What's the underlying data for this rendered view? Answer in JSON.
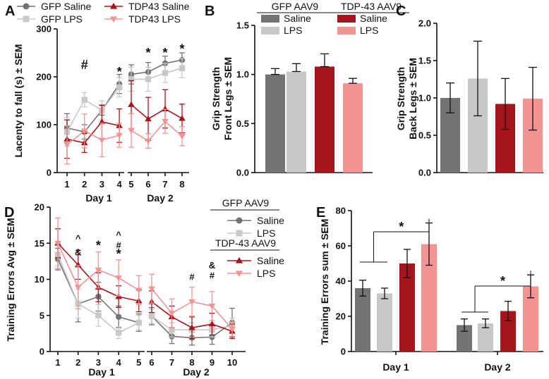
{
  "colors": {
    "gfp_saline": "#737373",
    "gfp_lps": "#c8c8c8",
    "tdp_saline": "#a7151c",
    "tdp_lps": "#f39393"
  },
  "chart_data": [
    {
      "panel": "A",
      "type": "line",
      "ylabel": "Lacenty to fall (s) ± SEM",
      "ylim": [
        0,
        300
      ],
      "yticks": [
        0,
        100,
        200,
        300
      ],
      "x": [
        1,
        2,
        3,
        4,
        5,
        6,
        7,
        8
      ],
      "day_labels": [
        "Day 1",
        "Day 2"
      ],
      "legend": [
        "GFP Saline",
        "GFP LPS",
        "TDP43 Saline",
        "TDP43 LPS"
      ],
      "series": [
        {
          "name": "GFP Saline",
          "values": [
            93,
            85,
            130,
            185,
            205,
            210,
            228,
            235
          ],
          "err": [
            30,
            15,
            10,
            20,
            20,
            20,
            15,
            15
          ]
        },
        {
          "name": "GFP LPS",
          "values": [
            85,
            152,
            130,
            178,
            195,
            195,
            208,
            218
          ],
          "err": [
            30,
            15,
            20,
            20,
            25,
            25,
            20,
            20
          ]
        },
        {
          "name": "TDP43 Saline",
          "values": [
            70,
            62,
            106,
            98,
            142,
            112,
            133,
            113
          ],
          "err": [
            40,
            20,
            35,
            35,
            50,
            45,
            40,
            30
          ]
        },
        {
          "name": "TDP43 LPS",
          "values": [
            58,
            87,
            68,
            78,
            88,
            66,
            107,
            76
          ],
          "err": [
            40,
            35,
            35,
            25,
            35,
            15,
            25,
            20
          ]
        }
      ],
      "annotations": [
        {
          "x": 2,
          "y": 225,
          "text": "#"
        },
        {
          "x": 4,
          "y": 210,
          "text": "*"
        },
        {
          "x": 6,
          "y": 250,
          "text": "*"
        },
        {
          "x": 7,
          "y": 250,
          "text": "*"
        },
        {
          "x": 8,
          "y": 258,
          "text": "*"
        }
      ]
    },
    {
      "panel": "B",
      "type": "bar",
      "ylabel": "Grip Strength Front Legs ± SEM",
      "ylim": [
        0,
        1.5
      ],
      "yticks": [
        "0.0",
        "0.5",
        "1.0",
        "1.5"
      ],
      "categories": [
        "GFP Saline",
        "GFP LPS",
        "TDP-43 Saline",
        "TDP-43 LPS"
      ],
      "values": [
        1.0,
        1.03,
        1.08,
        0.91
      ],
      "err": [
        0.06,
        0.08,
        0.13,
        0.05
      ],
      "legend_groups": [
        {
          "title": "GFP AAV9",
          "items": [
            "Saline",
            "LPS"
          ]
        },
        {
          "title": "TDP-43 AAV9",
          "items": [
            "Saline",
            "LPS"
          ]
        }
      ]
    },
    {
      "panel": "C",
      "type": "bar",
      "ylabel": "Grip Strength Back Legs ± SEM",
      "ylim": [
        0,
        2.0
      ],
      "yticks": [
        "0.0",
        "0.5",
        "1.0",
        "1.5",
        "2.0"
      ],
      "categories": [
        "GFP Saline",
        "GFP LPS",
        "TDP-43 Saline",
        "TDP-43 LPS"
      ],
      "values": [
        1.0,
        1.26,
        0.92,
        0.99
      ],
      "err": [
        0.2,
        0.5,
        0.34,
        0.42
      ]
    },
    {
      "panel": "D",
      "type": "line",
      "ylabel": "Training Errors Avg ± SEM",
      "ylim": [
        0,
        20
      ],
      "yticks": [
        0,
        5,
        10,
        15,
        20
      ],
      "x": [
        1,
        2,
        3,
        4,
        5,
        6,
        7,
        8,
        9,
        10
      ],
      "day_labels": [
        "Day 1",
        "Day 2"
      ],
      "legend_groups": [
        {
          "title": "GFP AAV9",
          "items": [
            "Saline",
            "LPS"
          ]
        },
        {
          "title": "TDP-43 AAV9",
          "items": [
            "Saline",
            "LPS"
          ]
        }
      ],
      "series": [
        {
          "name": "GFP Saline",
          "values": [
            12.8,
            6.6,
            7.6,
            4.8,
            4.0,
            4.9,
            2.1,
            1.9,
            2.0,
            4.0
          ],
          "err": [
            1.5,
            2.5,
            2,
            1.5,
            1.2,
            1.2,
            1,
            1,
            1,
            2
          ]
        },
        {
          "name": "GFP LPS",
          "values": [
            13.4,
            6.6,
            5.0,
            2.6,
            4.0,
            4.9,
            3.0,
            3.0,
            3.0,
            3.6
          ],
          "err": [
            1.5,
            2,
            1.5,
            0.8,
            1,
            1,
            1,
            1,
            1,
            1
          ]
        },
        {
          "name": "TDP43 Saline",
          "values": [
            15.0,
            12.0,
            8.9,
            7.6,
            7.0,
            6.9,
            4.8,
            3.3,
            3.8,
            2.8
          ],
          "err": [
            2,
            2,
            2,
            1.5,
            1.5,
            1.5,
            1.5,
            1.5,
            1.5,
            1
          ]
        },
        {
          "name": "TDP43 LPS",
          "values": [
            15.0,
            8.9,
            11.3,
            10.2,
            8.5,
            8.7,
            5.3,
            6.9,
            6.3,
            3.1
          ],
          "err": [
            3.5,
            3,
            2.5,
            2.5,
            2,
            2,
            2,
            2,
            2,
            1
          ]
        }
      ],
      "annotations": [
        {
          "x": 2,
          "y": 15.7,
          "text": "^"
        },
        {
          "x": 2,
          "y": 13.8,
          "text": "&"
        },
        {
          "x": 3,
          "y": 14.6,
          "text": "*"
        },
        {
          "x": 4,
          "y": 16.2,
          "text": "^"
        },
        {
          "x": 4,
          "y": 14.8,
          "text": "#"
        },
        {
          "x": 4,
          "y": 13.4,
          "text": "*"
        },
        {
          "x": 8,
          "y": 10.4,
          "text": "#"
        },
        {
          "x": 9,
          "y": 12.0,
          "text": "&"
        },
        {
          "x": 9,
          "y": 10.6,
          "text": "#"
        }
      ]
    },
    {
      "panel": "E",
      "type": "bar",
      "ylabel": "Training Errors sum ± SEM",
      "ylim": [
        0,
        80
      ],
      "yticks": [
        0,
        20,
        40,
        60,
        80
      ],
      "groups": [
        "Day 1",
        "Day 2"
      ],
      "series": [
        {
          "name": "GFP Saline",
          "values": [
            36,
            15
          ],
          "err": [
            4.5,
            3.5
          ]
        },
        {
          "name": "GFP LPS",
          "values": [
            33,
            16
          ],
          "err": [
            3,
            2.5
          ]
        },
        {
          "name": "TDP43 Saline",
          "values": [
            50,
            23
          ],
          "err": [
            8,
            5.5
          ]
        },
        {
          "name": "TDP43 LPS",
          "values": [
            61,
            37
          ],
          "err": [
            12,
            6.5
          ]
        }
      ],
      "significance": [
        {
          "group": "Day 1",
          "text": "*"
        },
        {
          "group": "Day 2",
          "text": "*"
        }
      ]
    }
  ]
}
